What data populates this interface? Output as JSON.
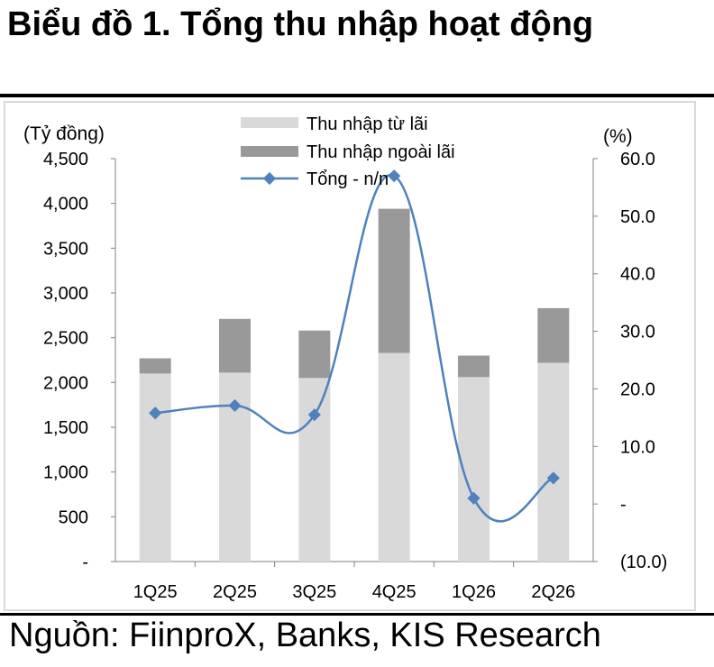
{
  "title": "Biểu đồ 1. Tổng thu nhập hoạt động",
  "source": "Nguồn: FiinproX, Banks, KIS Research",
  "chart_data": {
    "type": "bar",
    "stacked": true,
    "categories": [
      "1Q25",
      "2Q25",
      "3Q25",
      "4Q25",
      "1Q26",
      "2Q26"
    ],
    "series": [
      {
        "name": "Thu nhập từ lãi",
        "type": "bar",
        "axis": "left",
        "color": "#d9d9d9",
        "values": [
          2100,
          2110,
          2050,
          2330,
          2060,
          2220
        ]
      },
      {
        "name": "Thu nhập ngoài lãi",
        "type": "bar",
        "axis": "left",
        "color": "#999999",
        "values": [
          170,
          600,
          530,
          1610,
          240,
          610
        ]
      },
      {
        "name": "Tổng - n/n",
        "type": "line",
        "axis": "right",
        "color": "#4f81bd",
        "values": [
          15.8,
          17.1,
          15.5,
          57.0,
          1.0,
          4.5
        ]
      }
    ],
    "ylabel_left": "(Tỷ đồng)",
    "ylabel_right": "(%)",
    "ylim_left": [
      0,
      4500
    ],
    "ylim_right": [
      -10,
      60
    ],
    "left_ticks": [
      "-",
      "500",
      "1,000",
      "1,500",
      "2,000",
      "2,500",
      "3,000",
      "3,500",
      "4,000",
      "4,500"
    ],
    "right_ticks": [
      "(10.0)",
      "-",
      "10.0",
      "20.0",
      "30.0",
      "40.0",
      "50.0",
      "60.0"
    ],
    "legend_position": "top-center",
    "grid": false
  }
}
